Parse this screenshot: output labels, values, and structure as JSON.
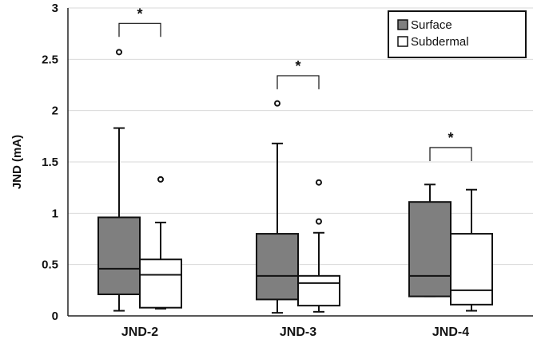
{
  "chart_data": {
    "type": "box",
    "ylabel": "JND (mA)",
    "ylim": [
      0,
      3
    ],
    "yticks": [
      "0",
      "0.5",
      "1",
      "1.5",
      "2",
      "2.5",
      "3"
    ],
    "grid": "horizontal",
    "categories": [
      "JND-2",
      "JND-3",
      "JND-4"
    ],
    "legend": {
      "placement": "top-right"
    },
    "series": [
      {
        "name": "Surface",
        "color": "#7f7f7f",
        "boxes": [
          {
            "min": 0.05,
            "q1": 0.21,
            "median": 0.46,
            "q3": 0.96,
            "max": 1.83,
            "outliers": [
              2.57
            ]
          },
          {
            "min": 0.03,
            "q1": 0.16,
            "median": 0.39,
            "q3": 0.8,
            "max": 1.68,
            "outliers": [
              2.07
            ]
          },
          {
            "min": 0.19,
            "q1": 0.19,
            "median": 0.39,
            "q3": 1.11,
            "max": 1.28,
            "outliers": []
          }
        ]
      },
      {
        "name": "Subdermal",
        "color": "#ffffff",
        "boxes": [
          {
            "min": 0.07,
            "q1": 0.08,
            "median": 0.4,
            "q3": 0.55,
            "max": 0.91,
            "outliers": [
              1.33
            ]
          },
          {
            "min": 0.04,
            "q1": 0.1,
            "median": 0.32,
            "q3": 0.39,
            "max": 0.81,
            "outliers": [
              0.92,
              1.3
            ]
          },
          {
            "min": 0.05,
            "q1": 0.11,
            "median": 0.25,
            "q3": 0.8,
            "max": 1.23,
            "outliers": []
          }
        ]
      }
    ],
    "significance": [
      {
        "category": "JND-2",
        "y": 2.85,
        "label": "*"
      },
      {
        "category": "JND-3",
        "y": 2.34,
        "label": "*"
      },
      {
        "category": "JND-4",
        "y": 1.64,
        "label": "*"
      }
    ]
  }
}
